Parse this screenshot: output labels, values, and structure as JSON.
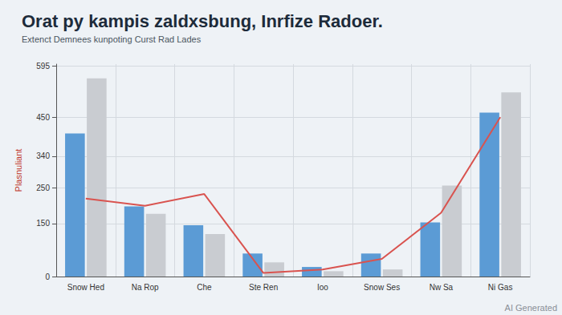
{
  "chart_data": {
    "type": "bar",
    "title": "Orat py kampis zaldxsbung, Inrfize Radoer.",
    "subtitle": "Extenct Demnees kunpoting Curst Rad Lades",
    "y_label": "Plasnuliant",
    "categories": [
      "Snow Hed",
      "Na Rop",
      "Che",
      "Ste Ren",
      "Ioo",
      "Snow Ses",
      "Nw Sa",
      "Ni Gas"
    ],
    "series": [
      {
        "type": "bar",
        "color": "#5b9bd5",
        "values": [
          404,
          198,
          145,
          65,
          27,
          65,
          153,
          463
        ]
      },
      {
        "type": "bar",
        "color": "#c9ccd1",
        "values": [
          560,
          177,
          120,
          40,
          15,
          20,
          257,
          520
        ]
      },
      {
        "type": "line",
        "color": "#d9534f",
        "marker": "none",
        "line_style": "solid",
        "values": [
          220,
          200,
          233,
          10,
          20,
          50,
          180,
          450
        ]
      }
    ],
    "ylim": [
      0,
      600
    ],
    "yticks": [
      0,
      150,
      250,
      340,
      450,
      595
    ],
    "grid": true,
    "annotations": [
      "AI Generated"
    ]
  }
}
